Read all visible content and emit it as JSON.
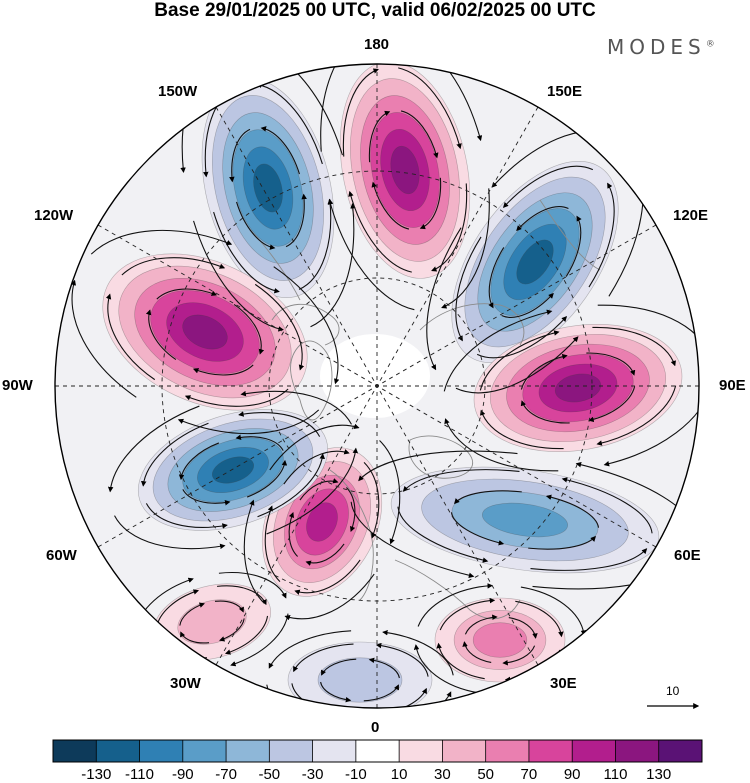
{
  "title": "Base 29/01/2025 00 UTC, valid 06/02/2025 00 UTC",
  "brand": {
    "name": "MODES",
    "mark": "®"
  },
  "longitude_labels": {
    "lon_180": "180",
    "lon_150e": "150E",
    "lon_120e": "120E",
    "lon_90e": "90E",
    "lon_60e": "60E",
    "lon_30e": "30E",
    "lon_0": "0",
    "lon_30w": "30W",
    "lon_60w": "60W",
    "lon_90w": "90W",
    "lon_120w": "120W",
    "lon_150w": "150W"
  },
  "vector_reference": {
    "label": "10"
  },
  "colorbar": {
    "labels": [
      "-130",
      "-110",
      "-90",
      "-70",
      "-50",
      "-30",
      "-10",
      "10",
      "30",
      "50",
      "70",
      "90",
      "110",
      "130"
    ],
    "colors": [
      "#0d3a5a",
      "#15608c",
      "#2f80b4",
      "#5a9dc8",
      "#8eb7d8",
      "#bcc6e2",
      "#e4e4f0",
      "#ffffff",
      "#f9dbe3",
      "#f2b3c8",
      "#ea7fb0",
      "#d8449c",
      "#b21e8d",
      "#8b167f",
      "#5a1275"
    ]
  },
  "chart_data": {
    "type": "heatmap",
    "title": "Base 29/01/2025 00 UTC, valid 06/02/2025 00 UTC",
    "projection": "north polar stereographic",
    "color_levels": [
      -130,
      -110,
      -90,
      -70,
      -50,
      -30,
      -10,
      10,
      30,
      50,
      70,
      90,
      110,
      130
    ],
    "anomaly_centers": [
      {
        "longitude": "150W-165W",
        "sign": "negative",
        "min_value": -130
      },
      {
        "longitude": "180",
        "sign": "positive",
        "max_value": 130
      },
      {
        "longitude": "135E",
        "sign": "negative",
        "min_value": -130
      },
      {
        "longitude": "95E",
        "sign": "positive",
        "max_value": 130
      },
      {
        "longitude": "60E",
        "sign": "negative",
        "min_value": -90
      },
      {
        "longitude": "30E",
        "sign": "positive",
        "max_value": 70
      },
      {
        "longitude": "0",
        "sign": "negative",
        "min_value": -50
      },
      {
        "longitude": "30W",
        "sign": "positive",
        "max_value": 50
      },
      {
        "longitude": "30W-45W",
        "sign": "positive",
        "max_value": 110
      },
      {
        "longitude": "65W",
        "sign": "negative",
        "min_value": -130
      },
      {
        "longitude": "100W-105W",
        "sign": "positive",
        "max_value": 130
      }
    ],
    "vector_reference_magnitude": 10
  }
}
